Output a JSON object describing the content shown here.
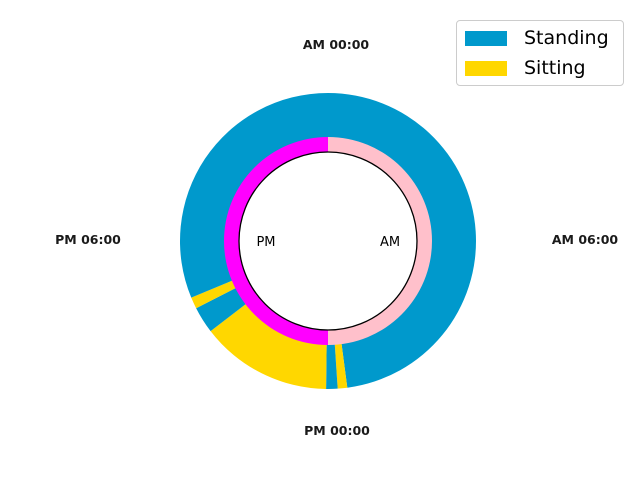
{
  "chart_data": {
    "type": "pie",
    "subtype": "nested-donut-clock",
    "clock_labels": {
      "top": "AM 00:00",
      "right": "AM 06:00",
      "bottom": "PM 00:00",
      "left": "PM 06:00"
    },
    "inner_labels": {
      "am": "AM",
      "pm": "PM"
    },
    "legend": {
      "placement": "top-right",
      "entries": [
        {
          "name": "Standing",
          "color": "#0099cc"
        },
        {
          "name": "Sitting",
          "color": "#ffd700"
        }
      ]
    },
    "outer_ring": {
      "unit": "hours",
      "start": "AM 00:00",
      "direction": "clockwise",
      "segments": [
        {
          "series": "Standing",
          "start_hour": 0.0,
          "end_hour": 11.5
        },
        {
          "series": "Sitting",
          "start_hour": 11.5,
          "end_hour": 11.75
        },
        {
          "series": "Standing",
          "start_hour": 11.75,
          "end_hour": 12.05
        },
        {
          "series": "Sitting",
          "start_hour": 12.05,
          "end_hour": 15.5
        },
        {
          "series": "Standing",
          "start_hour": 15.5,
          "end_hour": 16.2
        },
        {
          "series": "Sitting",
          "start_hour": 16.2,
          "end_hour": 16.5
        },
        {
          "series": "Standing",
          "start_hour": 16.5,
          "end_hour": 24.0
        }
      ]
    },
    "inner_ring": [
      {
        "label": "AM",
        "color": "#ffc0cb",
        "start_hour": 0,
        "end_hour": 12
      },
      {
        "label": "PM",
        "color": "#ff00ff",
        "start_hour": 12,
        "end_hour": 24
      }
    ]
  }
}
